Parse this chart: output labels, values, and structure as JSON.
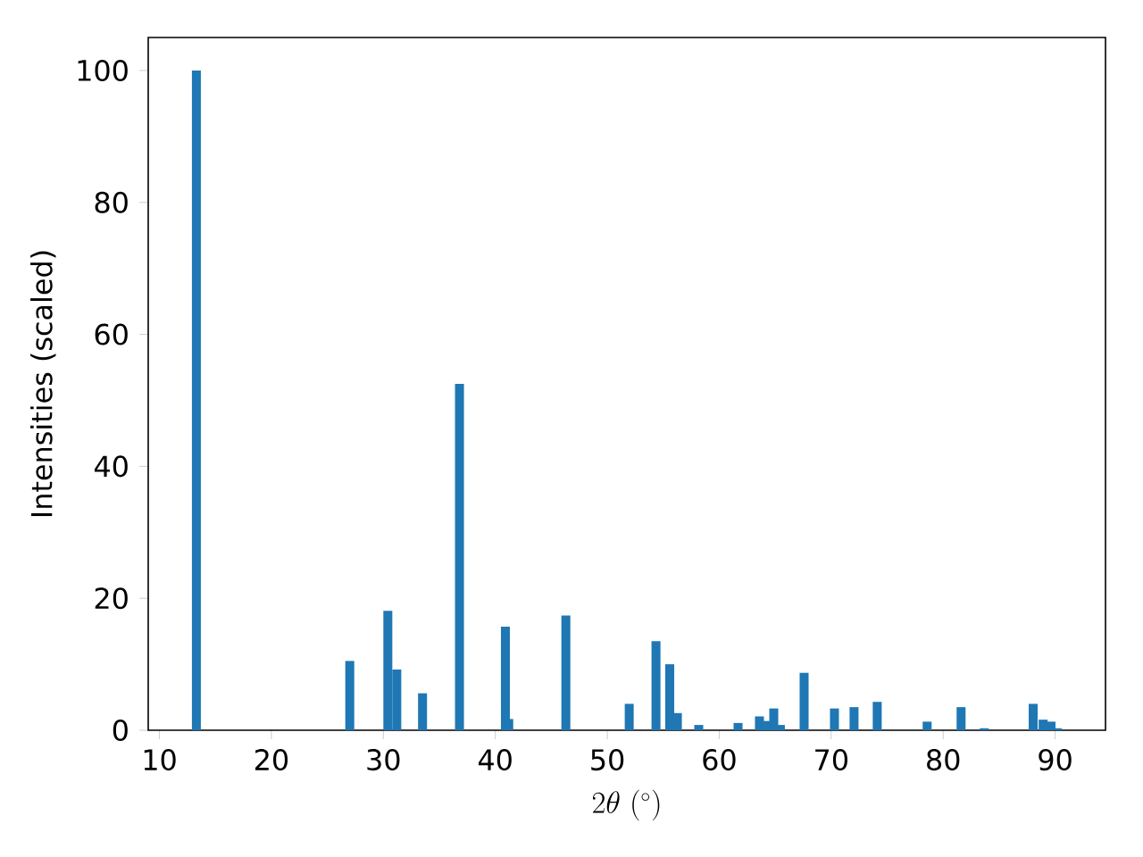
{
  "chart_data": {
    "type": "bar",
    "xlabel": "2\\theta\\ (^\\circ)",
    "ylabel": "Intensities (scaled)",
    "color": "#1f77b4",
    "x": [
      13.3,
      27.0,
      30.4,
      31.2,
      33.5,
      36.8,
      40.9,
      41.2,
      46.3,
      51.96,
      54.35,
      55.58,
      56.26,
      58.17,
      61.68,
      63.59,
      64.18,
      64.87,
      65.46,
      67.58,
      70.29,
      72.04,
      74.11,
      78.57,
      81.6,
      83.67,
      88.04,
      88.93,
      89.63,
      90.2
    ],
    "values": [
      100,
      10.5,
      18.1,
      9.2,
      5.6,
      52.5,
      15.7,
      1.7,
      17.4,
      4.0,
      13.5,
      10.0,
      2.6,
      0.8,
      1.1,
      2.1,
      1.4,
      3.3,
      0.8,
      8.7,
      3.3,
      3.5,
      4.3,
      1.3,
      3.5,
      0.3,
      4.0,
      1.6,
      1.3,
      0.3
    ],
    "xlim": [
      9.0,
      94.5
    ],
    "ylim": [
      0,
      105
    ],
    "xticks": [
      10,
      20,
      30,
      40,
      50,
      60,
      70,
      80,
      90
    ],
    "yticks": [
      0,
      20,
      40,
      60,
      80,
      100
    ]
  }
}
